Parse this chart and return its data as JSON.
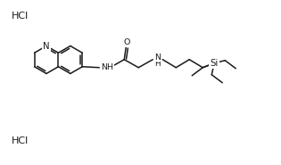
{
  "bg_color": "#ffffff",
  "line_color": "#1a1a1a",
  "text_color": "#1a1a1a",
  "lw": 1.1,
  "fs": 6.8,
  "hcl_fs": 8.0,
  "figsize": [
    3.15,
    1.85
  ],
  "dpi": 100,
  "hcl1": [
    13,
    167
  ],
  "hcl2": [
    13,
    27
  ]
}
